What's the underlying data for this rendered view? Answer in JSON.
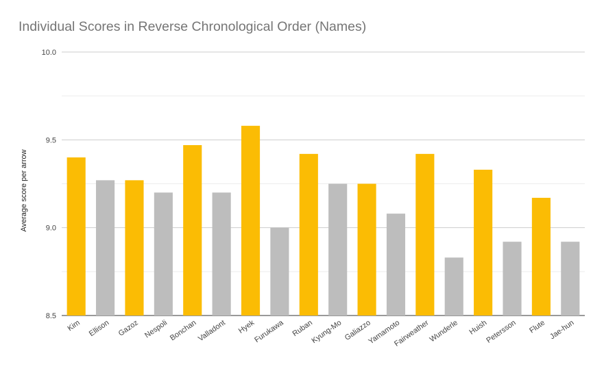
{
  "chart_data": {
    "type": "bar",
    "title": "Individual Scores in Reverse Chronological Order (Names)",
    "xlabel": "",
    "ylabel": "Average score per arrow",
    "ylim": [
      8.5,
      10.0
    ],
    "yticks": [
      "8.5",
      "9.0",
      "9.5",
      "10.0"
    ],
    "grid": true,
    "legend": "none",
    "categories": [
      "Kim",
      "Ellison",
      "Gazoz",
      "Nespoli",
      "Bonchan",
      "Valladont",
      "Hyek",
      "Furukawa",
      "Ruban",
      "Kyung-Mo",
      "Galiazzo",
      "Yamamoto",
      "Fairweather",
      "Wunderle",
      "Huish",
      "Petersson",
      "Flute",
      "Jae-hun"
    ],
    "values": [
      9.4,
      9.27,
      9.27,
      9.2,
      9.47,
      9.2,
      9.58,
      9.0,
      9.42,
      9.25,
      9.25,
      9.08,
      9.42,
      8.83,
      9.33,
      8.92,
      9.17,
      8.92
    ],
    "bar_colors": [
      "#fbbc04",
      "#bdbdbd",
      "#fbbc04",
      "#bdbdbd",
      "#fbbc04",
      "#bdbdbd",
      "#fbbc04",
      "#bdbdbd",
      "#fbbc04",
      "#bdbdbd",
      "#fbbc04",
      "#bdbdbd",
      "#fbbc04",
      "#bdbdbd",
      "#fbbc04",
      "#bdbdbd",
      "#fbbc04",
      "#bdbdbd"
    ]
  }
}
